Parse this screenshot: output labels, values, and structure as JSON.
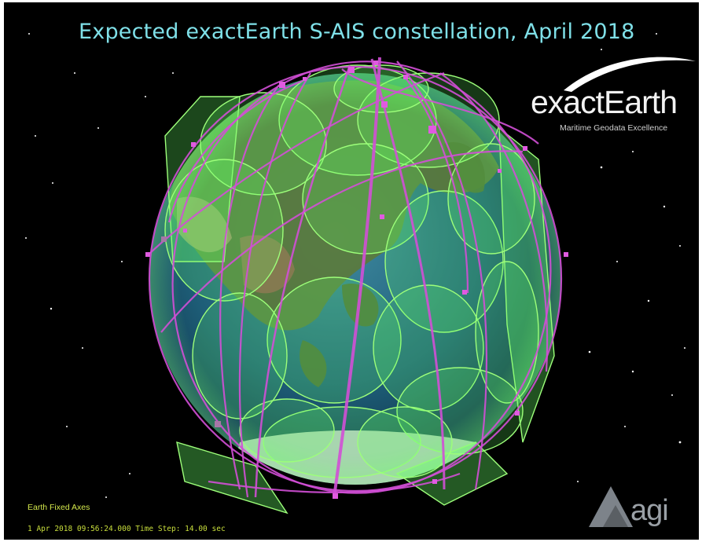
{
  "header": {
    "title": "Expected exactEarth S-AIS constellation, April 2018"
  },
  "logo": {
    "brand": "exactEarth",
    "tagline": "Maritime Geodata Excellence",
    "swoosh_color": "#ffffff",
    "text_color": "#f2f2f2"
  },
  "vendor_logo": {
    "text": "agi",
    "icon": "agi-triangle-logo-icon",
    "color": "#9aa0a6"
  },
  "footer": {
    "axes_label": "Earth Fixed Axes",
    "status": "1 Apr 2018 09:56:24.000   Time Step: 14.00 sec"
  },
  "colors": {
    "orbit": "#d24fd6",
    "footprint": "#66ff66",
    "title": "#7fe0e8",
    "status_text": "#c9df3c",
    "ocean": "#1c5d7a",
    "space": "#000000"
  }
}
